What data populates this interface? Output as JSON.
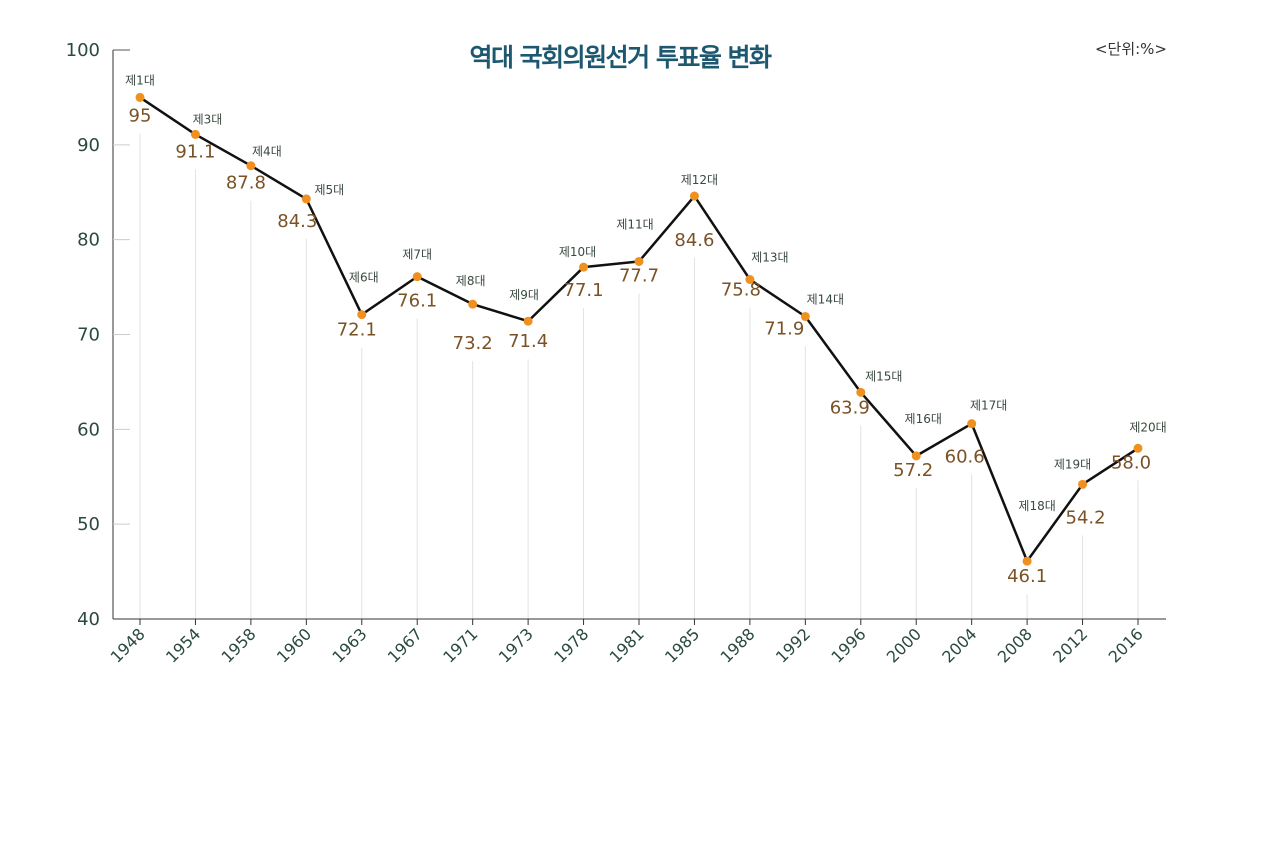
{
  "chart_data": {
    "type": "line",
    "title": "역대  국회의원선거 투표율 변화",
    "unit_label": "<단위:%>",
    "xlabel": "",
    "ylabel": "",
    "ylim": [
      40,
      100
    ],
    "yticks": [
      40,
      50,
      60,
      70,
      80,
      90,
      100
    ],
    "categories": [
      "1948",
      "1954",
      "1958",
      "1960",
      "1963",
      "1967",
      "1971",
      "1973",
      "1978",
      "1981",
      "1985",
      "1988",
      "1992",
      "1996",
      "2000",
      "2004",
      "2008",
      "2012",
      "2016"
    ],
    "terms": [
      "제1대",
      "제3대",
      "제4대",
      "제5대",
      "제6대",
      "제7대",
      "제8대",
      "제9대",
      "제10대",
      "제11대",
      "제12대",
      "제13대",
      "제14대",
      "제15대",
      "제16대",
      "제17대",
      "제18대",
      "제19대",
      "제20대"
    ],
    "values": [
      95,
      91.1,
      87.8,
      84.3,
      72.1,
      76.1,
      73.2,
      71.4,
      77.1,
      77.7,
      84.6,
      75.8,
      71.9,
      63.9,
      57.2,
      60.6,
      46.1,
      54.2,
      58.0
    ],
    "value_labels": [
      "95",
      "91.1",
      "87.8",
      "84.3",
      "72.1",
      "76.1",
      "73.2",
      "71.4",
      "77.1",
      "77.7",
      "84.6",
      "75.8",
      "71.9",
      "63.9",
      "57.2",
      "60.6",
      "46.1",
      "54.2",
      "58.0"
    ],
    "grid": false,
    "legend": "none",
    "colors": {
      "line": "#111111",
      "marker": "#f0901e",
      "value_text": "#7a5226",
      "title": "#1d5870",
      "axis": "#2a4a3e"
    }
  }
}
